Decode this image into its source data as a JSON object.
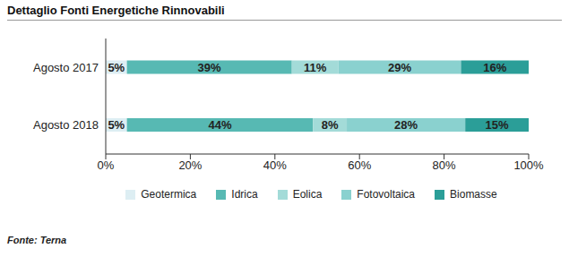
{
  "chart_data": {
    "type": "bar",
    "title": "Dettaglio Fonti Energetiche Rinnovabili",
    "source": "Fonte: Terna",
    "orientation": "horizontal",
    "stacked": true,
    "data_labels": true,
    "grid": false,
    "legend": "bottom",
    "categories": [
      "Agosto 2017",
      "Agosto 2018"
    ],
    "xlim": [
      0,
      100
    ],
    "xticks": [
      {
        "value": 0,
        "label": "0%"
      },
      {
        "value": 20,
        "label": "20%"
      },
      {
        "value": 40,
        "label": "40%"
      },
      {
        "value": 60,
        "label": "60%"
      },
      {
        "value": 80,
        "label": "80%"
      },
      {
        "value": 100,
        "label": "100%"
      }
    ],
    "series": [
      {
        "name": "Geotermica",
        "color": "#ddeef3",
        "values": [
          5,
          5
        ],
        "value_labels": [
          "5%",
          "5%"
        ]
      },
      {
        "name": "Idrica",
        "color": "#57b9b3",
        "values": [
          39,
          44
        ],
        "value_labels": [
          "39%",
          "44%"
        ]
      },
      {
        "name": "Eolica",
        "color": "#a3dbd8",
        "values": [
          11,
          8
        ],
        "value_labels": [
          "11%",
          "8%"
        ]
      },
      {
        "name": "Fotovoltaica",
        "color": "#8ad1cf",
        "values": [
          29,
          28
        ],
        "value_labels": [
          "29%",
          "28%"
        ]
      },
      {
        "name": "Biomasse",
        "color": "#2b9e98",
        "values": [
          16,
          15
        ],
        "value_labels": [
          "16%",
          "15%"
        ]
      }
    ]
  }
}
